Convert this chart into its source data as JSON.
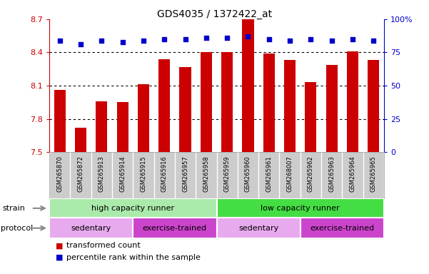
{
  "title": "GDS4035 / 1372422_at",
  "samples": [
    "GSM265870",
    "GSM265872",
    "GSM265913",
    "GSM265914",
    "GSM265915",
    "GSM265916",
    "GSM265957",
    "GSM265958",
    "GSM265959",
    "GSM265960",
    "GSM265961",
    "GSM268007",
    "GSM265962",
    "GSM265963",
    "GSM265964",
    "GSM265965"
  ],
  "bar_values": [
    8.06,
    7.72,
    7.96,
    7.95,
    8.11,
    8.34,
    8.27,
    8.4,
    8.4,
    8.7,
    8.39,
    8.33,
    8.13,
    8.29,
    8.41,
    8.33
  ],
  "dot_values": [
    84,
    81,
    84,
    83,
    84,
    85,
    85,
    86,
    86,
    87,
    85,
    84,
    85,
    84,
    85,
    84
  ],
  "ylim": [
    7.5,
    8.7
  ],
  "yticks_left": [
    7.5,
    7.8,
    8.1,
    8.4,
    8.7
  ],
  "yticks_right": [
    0,
    25,
    50,
    75,
    100
  ],
  "bar_color": "#cc0000",
  "dot_color": "#0000cc",
  "bar_bottom": 7.5,
  "strain_groups": [
    {
      "label": "high capacity runner",
      "start": 0,
      "end": 8,
      "color": "#aaeaaa"
    },
    {
      "label": "low capacity runner",
      "start": 8,
      "end": 16,
      "color": "#44dd44"
    }
  ],
  "protocol_groups": [
    {
      "label": "sedentary",
      "start": 0,
      "end": 4,
      "color": "#e8aaee"
    },
    {
      "label": "exercise-trained",
      "start": 4,
      "end": 8,
      "color": "#cc44cc"
    },
    {
      "label": "sedentary",
      "start": 8,
      "end": 12,
      "color": "#e8aaee"
    },
    {
      "label": "exercise-trained",
      "start": 12,
      "end": 16,
      "color": "#cc44cc"
    }
  ],
  "legend_items": [
    {
      "label": "transformed count",
      "color": "#cc0000"
    },
    {
      "label": "percentile rank within the sample",
      "color": "#0000cc"
    }
  ],
  "sample_bg": "#cccccc",
  "sample_sep": "#ffffff"
}
